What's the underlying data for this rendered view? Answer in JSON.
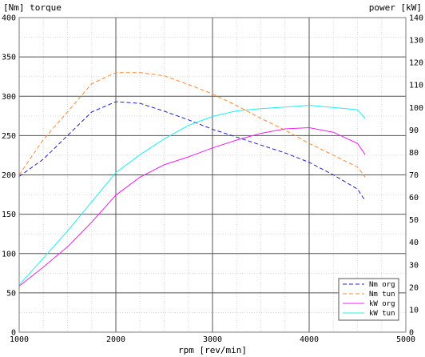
{
  "chart_data": {
    "type": "line",
    "left_axis_label": "[Nm] torque",
    "right_axis_label": "power [kW]",
    "xlabel": "rpm [rev/min]",
    "xlim": [
      1000,
      5000
    ],
    "x_ticks": [
      1000,
      2000,
      3000,
      4000,
      5000
    ],
    "ylim_left": [
      0,
      400
    ],
    "y_ticks_left": [
      0,
      50,
      100,
      150,
      200,
      250,
      300,
      350,
      400
    ],
    "ylim_right": [
      0,
      140
    ],
    "y_ticks_right": [
      0,
      10,
      20,
      30,
      40,
      50,
      60,
      70,
      80,
      90,
      100,
      110,
      120,
      130,
      140
    ],
    "grid": true,
    "legend_position": "bottom-right",
    "series": [
      {
        "name": "Nm org",
        "axis": "left",
        "style": "dashed",
        "color": "#2222cc",
        "x": [
          1000,
          1250,
          1500,
          1750,
          2000,
          2250,
          2500,
          2750,
          3000,
          3250,
          3500,
          3750,
          4000,
          4250,
          4500,
          4580
        ],
        "y": [
          198,
          220,
          250,
          280,
          293,
          291,
          281,
          270,
          258,
          248,
          238,
          228,
          216,
          200,
          182,
          167
        ]
      },
      {
        "name": "Nm tun",
        "axis": "left",
        "style": "dashed",
        "color": "#ff8833",
        "x": [
          1000,
          1250,
          1500,
          1750,
          2000,
          2250,
          2500,
          2750,
          3000,
          3250,
          3500,
          3750,
          4000,
          4250,
          4500,
          4580
        ],
        "y": [
          200,
          245,
          280,
          316,
          330,
          330,
          326,
          315,
          303,
          288,
          272,
          257,
          240,
          225,
          210,
          197
        ]
      },
      {
        "name": "kW org",
        "axis": "right",
        "style": "solid",
        "color": "#ee22ee",
        "x": [
          1000,
          1250,
          1500,
          1750,
          2000,
          2250,
          2500,
          2750,
          3000,
          3250,
          3500,
          3750,
          4000,
          4250,
          4500,
          4580
        ],
        "y": [
          20.5,
          29,
          38,
          49,
          61,
          69,
          74.5,
          78,
          82,
          85.5,
          88.5,
          90.5,
          91,
          89,
          84,
          79
        ]
      },
      {
        "name": "kW tun",
        "axis": "right",
        "style": "solid",
        "color": "#22eeee",
        "x": [
          1000,
          1250,
          1500,
          1750,
          2000,
          2250,
          2500,
          2750,
          3000,
          3250,
          3500,
          3750,
          4000,
          4250,
          4500,
          4580
        ],
        "y": [
          21,
          33,
          45,
          58,
          71,
          79,
          86,
          92,
          96,
          98.5,
          99.5,
          100.2,
          101,
          100,
          99,
          95
        ]
      }
    ]
  }
}
